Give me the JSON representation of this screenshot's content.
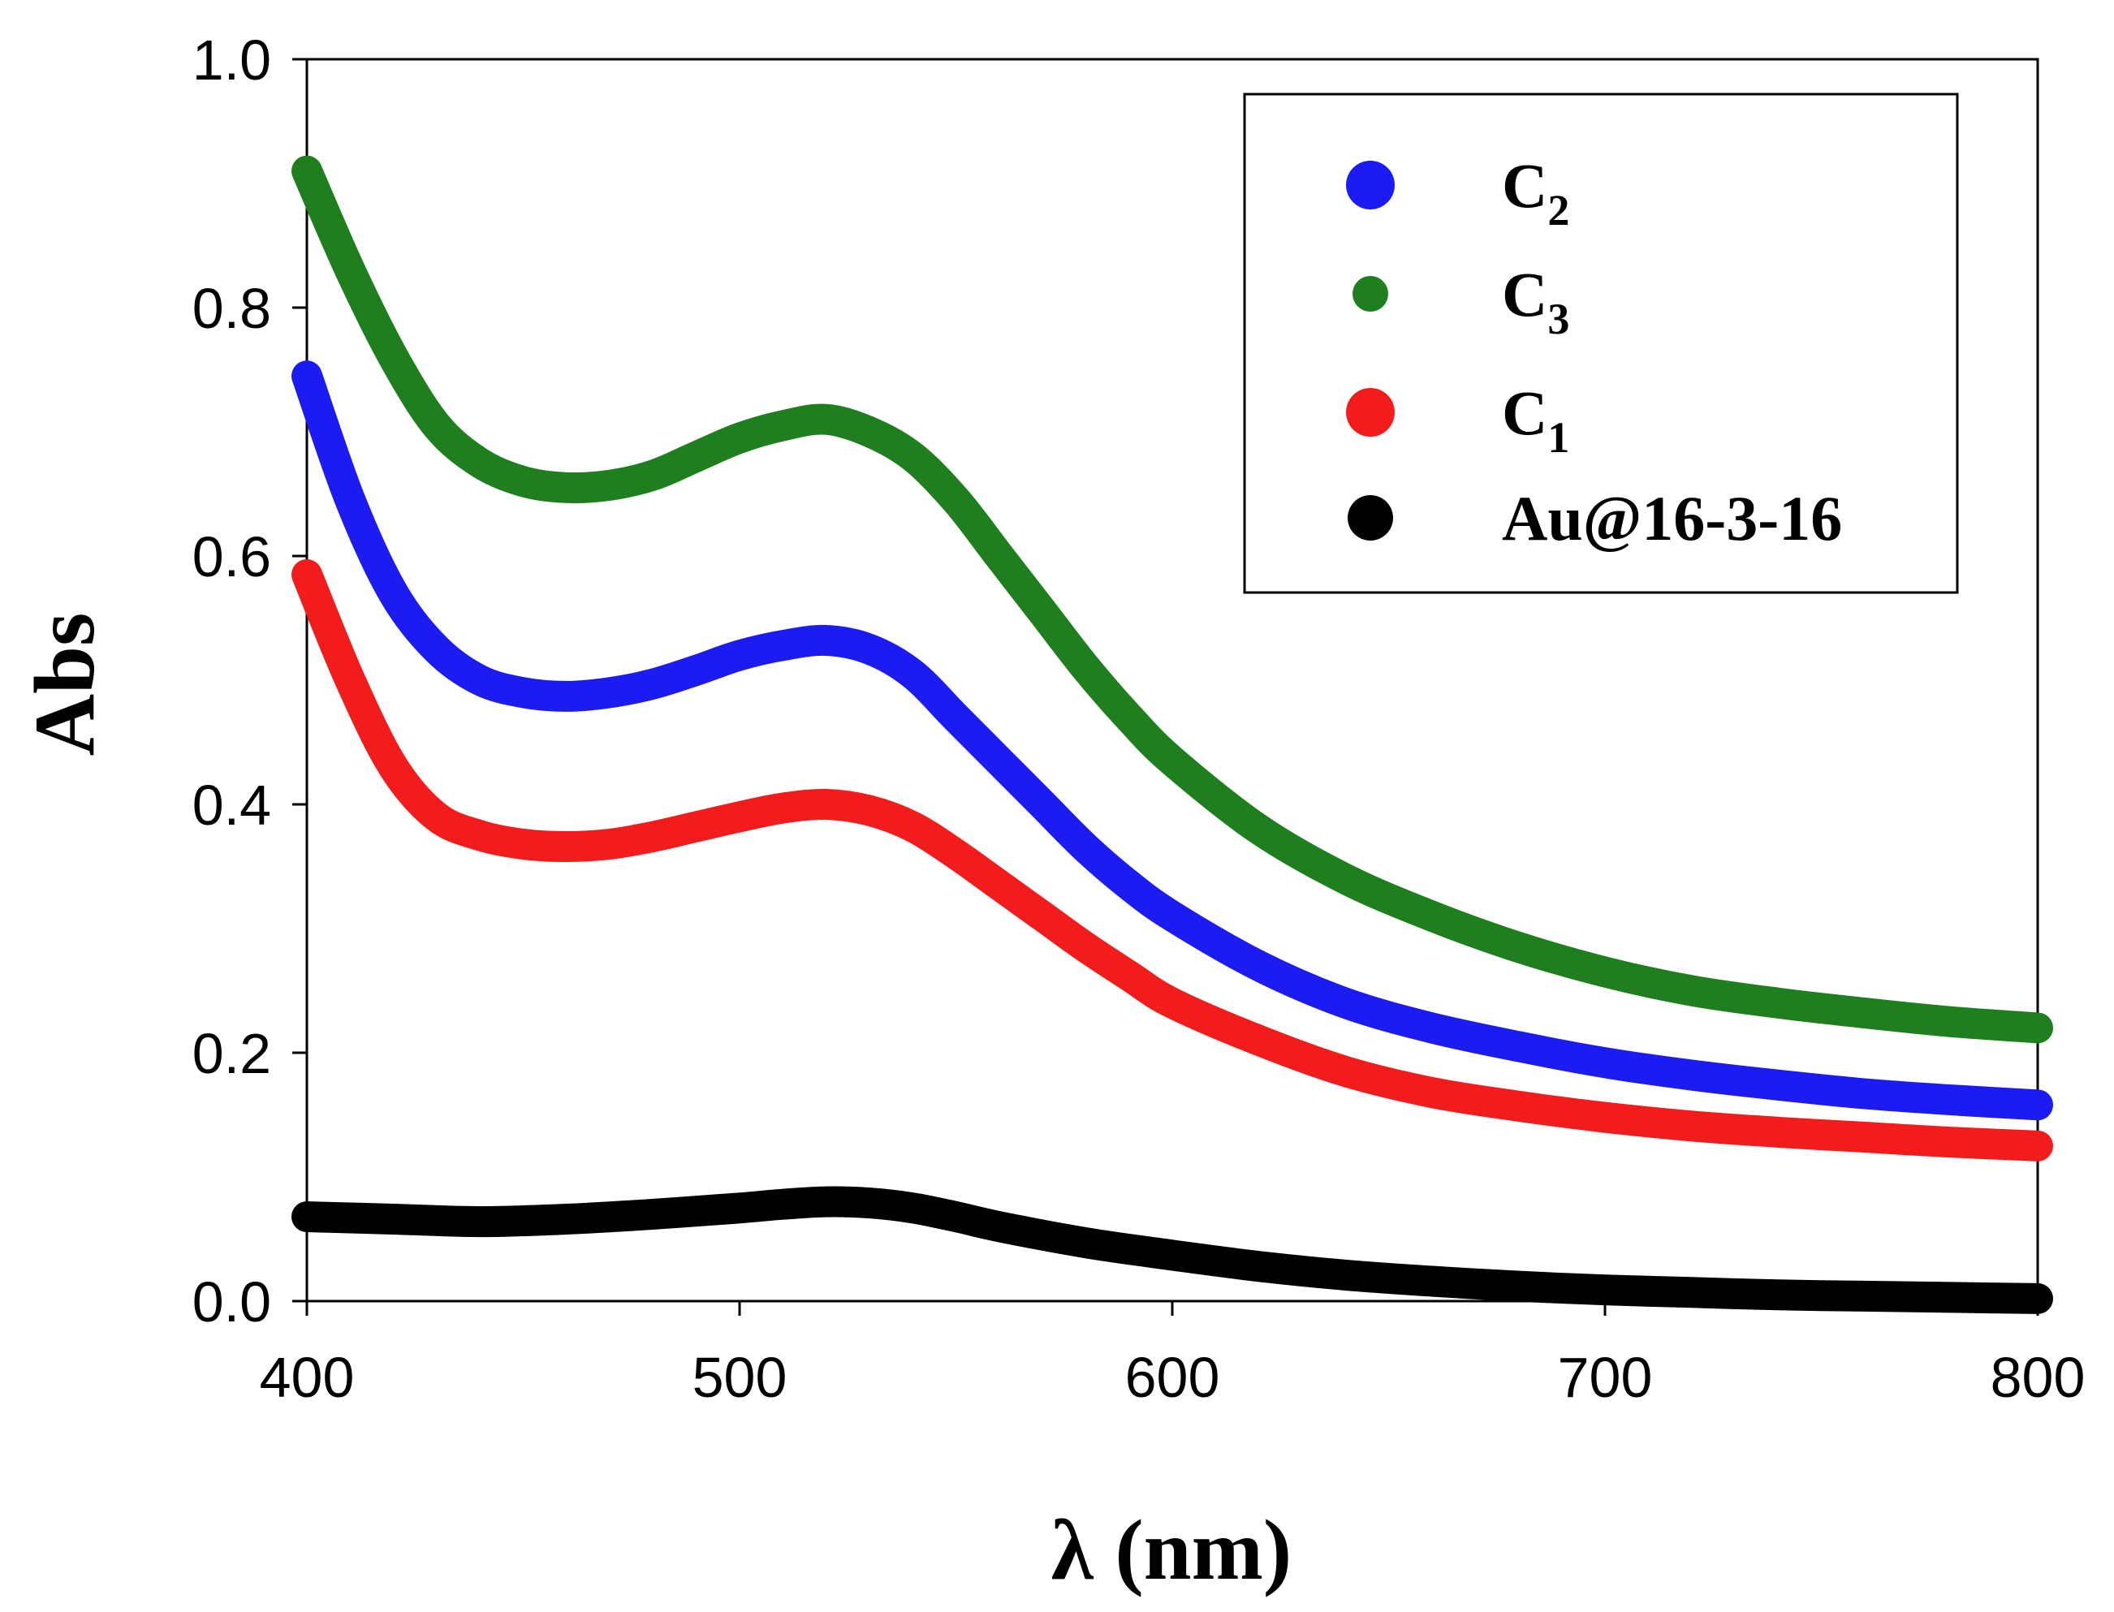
{
  "chart_data": {
    "type": "line",
    "title": "",
    "xlabel": "λ (nm)",
    "ylabel": "Abs",
    "xlim": [
      400,
      800
    ],
    "ylim": [
      0.0,
      1.0
    ],
    "xticks": [
      "400",
      "500",
      "600",
      "700",
      "800"
    ],
    "yticks": [
      "0.0",
      "0.2",
      "0.4",
      "0.6",
      "0.8",
      "1.0"
    ],
    "legend_position": "top-right",
    "series": [
      {
        "name": "C3",
        "legend_main": "C",
        "legend_sub": "3",
        "color": "#1f7f1f",
        "x": [
          400,
          410,
          420,
          430,
          440,
          450,
          460,
          470,
          480,
          490,
          500,
          510,
          520,
          530,
          540,
          550,
          560,
          570,
          580,
          590,
          600,
          620,
          640,
          660,
          680,
          700,
          720,
          740,
          760,
          780,
          800
        ],
        "y": [
          0.91,
          0.83,
          0.76,
          0.705,
          0.675,
          0.66,
          0.655,
          0.657,
          0.665,
          0.68,
          0.695,
          0.705,
          0.71,
          0.7,
          0.68,
          0.645,
          0.6,
          0.555,
          0.51,
          0.47,
          0.435,
          0.38,
          0.34,
          0.31,
          0.285,
          0.265,
          0.25,
          0.24,
          0.232,
          0.225,
          0.22
        ]
      },
      {
        "name": "C2",
        "legend_main": "C",
        "legend_sub": "2",
        "color": "#1c1cf2",
        "x": [
          400,
          410,
          420,
          430,
          440,
          450,
          460,
          470,
          480,
          490,
          500,
          510,
          520,
          530,
          540,
          550,
          560,
          570,
          580,
          590,
          600,
          620,
          640,
          660,
          680,
          700,
          720,
          740,
          760,
          780,
          800
        ],
        "y": [
          0.745,
          0.645,
          0.57,
          0.525,
          0.5,
          0.49,
          0.487,
          0.49,
          0.497,
          0.508,
          0.52,
          0.528,
          0.532,
          0.525,
          0.505,
          0.47,
          0.435,
          0.4,
          0.365,
          0.335,
          0.31,
          0.27,
          0.24,
          0.22,
          0.205,
          0.192,
          0.182,
          0.174,
          0.167,
          0.162,
          0.158
        ]
      },
      {
        "name": "C1",
        "legend_main": "C",
        "legend_sub": "1",
        "color": "#f21c1c",
        "x": [
          400,
          410,
          420,
          430,
          440,
          450,
          460,
          470,
          480,
          490,
          500,
          510,
          520,
          530,
          540,
          550,
          560,
          570,
          580,
          590,
          600,
          620,
          640,
          660,
          680,
          700,
          720,
          740,
          760,
          780,
          800
        ],
        "y": [
          0.585,
          0.5,
          0.43,
          0.39,
          0.375,
          0.368,
          0.366,
          0.368,
          0.374,
          0.382,
          0.39,
          0.397,
          0.4,
          0.395,
          0.382,
          0.36,
          0.335,
          0.31,
          0.285,
          0.262,
          0.24,
          0.21,
          0.185,
          0.168,
          0.157,
          0.148,
          0.141,
          0.136,
          0.132,
          0.128,
          0.125
        ]
      },
      {
        "name": "Au@16-3-16",
        "legend_main": "Au@16-3-16",
        "legend_sub": "",
        "color": "#000000",
        "x": [
          400,
          420,
          440,
          460,
          480,
          500,
          510,
          520,
          530,
          540,
          550,
          560,
          580,
          600,
          620,
          640,
          660,
          680,
          700,
          720,
          740,
          760,
          780,
          800
        ],
        "y": [
          0.068,
          0.066,
          0.064,
          0.066,
          0.07,
          0.075,
          0.078,
          0.08,
          0.079,
          0.075,
          0.068,
          0.06,
          0.047,
          0.037,
          0.028,
          0.021,
          0.016,
          0.012,
          0.009,
          0.007,
          0.005,
          0.004,
          0.003,
          0.002
        ]
      }
    ],
    "legend_order": [
      "C2",
      "C3",
      "C1",
      "Au@16-3-16"
    ]
  }
}
